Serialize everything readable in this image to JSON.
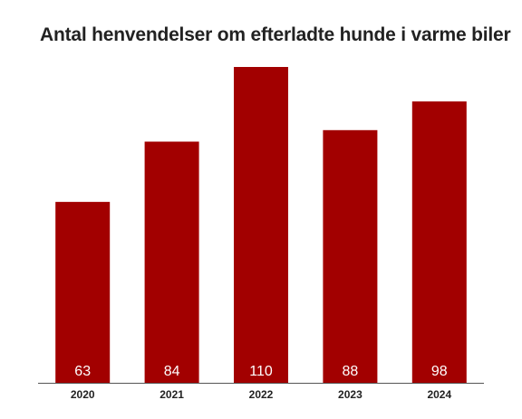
{
  "chart_data": {
    "type": "bar",
    "title": "Antal henvendelser om efterladte hunde i varme biler",
    "xlabel": "",
    "ylabel": "",
    "categories": [
      "2020",
      "2021",
      "2022",
      "2023",
      "2024"
    ],
    "values": [
      63,
      84,
      110,
      88,
      98
    ],
    "data_labels": [
      "63",
      "84",
      "110",
      "88",
      "98"
    ],
    "ylim": [
      0,
      110
    ],
    "grid": false,
    "legend": "none",
    "bar_color": "#a20000",
    "data_label_color": "#ffffff"
  }
}
